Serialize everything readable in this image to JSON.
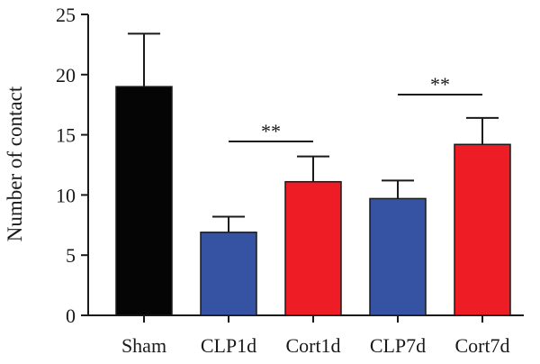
{
  "chart_data": {
    "type": "bar",
    "title": "",
    "xlabel": "",
    "ylabel": "Number of contact",
    "ylim": [
      0,
      25
    ],
    "yticks": [
      "0",
      "5",
      "10",
      "15",
      "20",
      "25"
    ],
    "categories": [
      "Sham",
      "CLP1d",
      "Cort1d",
      "CLP7d",
      "Cort7d"
    ],
    "values": [
      19.0,
      6.9,
      11.1,
      9.7,
      14.2
    ],
    "errors": [
      4.4,
      1.3,
      2.1,
      1.5,
      2.2
    ],
    "colors": [
      "#050505",
      "#3653a3",
      "#ee1c25",
      "#3653a3",
      "#ee1c25"
    ],
    "significance": [
      {
        "from": "CLP1d",
        "to": "Cort1d",
        "label": "**"
      },
      {
        "from": "CLP7d",
        "to": "Cort7d",
        "label": "**"
      }
    ]
  }
}
